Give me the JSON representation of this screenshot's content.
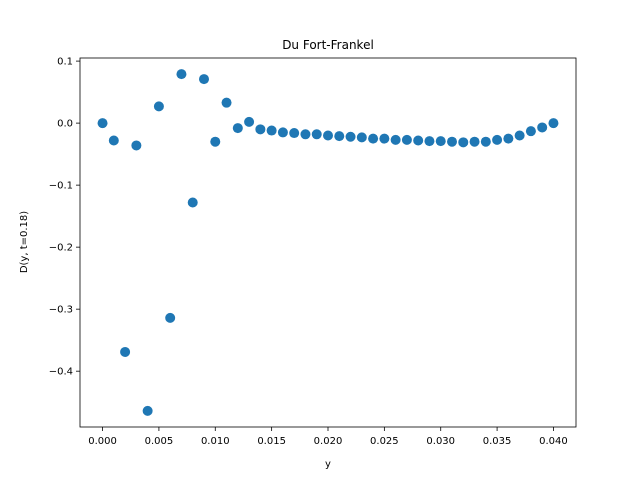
{
  "chart_data": {
    "type": "scatter",
    "title": "Du Fort-Frankel",
    "xlabel": "y",
    "ylabel": "D(y, t=0.18)",
    "xlim": [
      -0.002,
      0.002
    ],
    "xlim_note": "",
    "x_range": [
      -0.002,
      0.042
    ],
    "y_range": [
      -0.49,
      0.105
    ],
    "x_ticks": [
      "0.000",
      "0.005",
      "0.010",
      "0.015",
      "0.020",
      "0.025",
      "0.030",
      "0.035",
      "0.040"
    ],
    "x_tick_values": [
      0.0,
      0.005,
      0.01,
      0.015,
      0.02,
      0.025,
      0.03,
      0.035,
      0.04
    ],
    "y_ticks": [
      "0.1",
      "0.0",
      "−0.1",
      "−0.2",
      "−0.3",
      "−0.4"
    ],
    "y_tick_values": [
      0.1,
      0.0,
      -0.1,
      -0.2,
      -0.3,
      -0.4
    ],
    "grid": false,
    "marker_color": "#1f77b4",
    "series": [
      {
        "x": [
          0.0,
          0.001,
          0.002,
          0.003,
          0.004,
          0.005,
          0.006,
          0.007,
          0.008,
          0.009,
          0.01,
          0.011,
          0.012,
          0.013,
          0.014,
          0.015,
          0.016,
          0.017,
          0.018,
          0.019,
          0.02,
          0.021,
          0.022,
          0.023,
          0.024,
          0.025,
          0.026,
          0.027,
          0.028,
          0.029,
          0.03,
          0.031,
          0.032,
          0.033,
          0.034,
          0.035,
          0.036,
          0.037,
          0.038,
          0.039,
          0.04
        ],
        "y": [
          0.0,
          -0.028,
          -0.369,
          -0.036,
          -0.464,
          0.027,
          -0.314,
          0.079,
          -0.128,
          0.071,
          -0.03,
          0.033,
          -0.008,
          0.002,
          -0.01,
          -0.012,
          -0.015,
          -0.016,
          -0.018,
          -0.018,
          -0.02,
          -0.021,
          -0.022,
          -0.023,
          -0.025,
          -0.025,
          -0.027,
          -0.027,
          -0.028,
          -0.029,
          -0.029,
          -0.03,
          -0.031,
          -0.03,
          -0.03,
          -0.027,
          -0.025,
          -0.02,
          -0.013,
          -0.007,
          0.0
        ]
      }
    ]
  }
}
